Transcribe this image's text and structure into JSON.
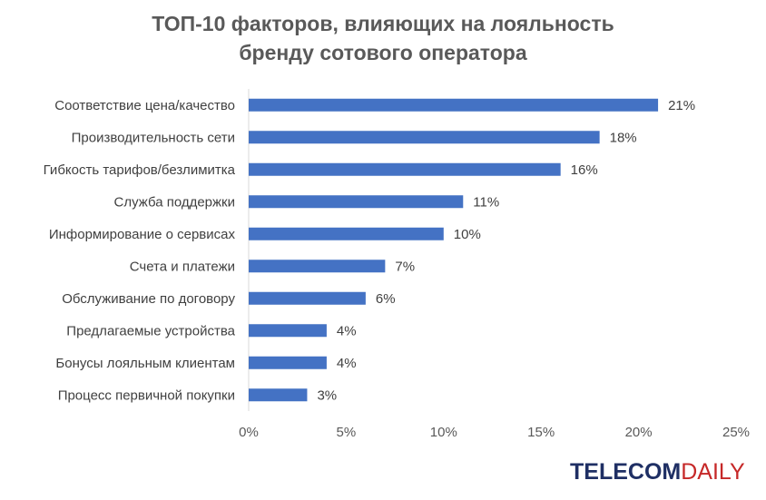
{
  "title_line1": "ТОП-10 факторов, влияющих на лояльность",
  "title_line2": "бренду сотового оператора",
  "brand": {
    "part1": "TELECOM",
    "part2": "DAILY"
  },
  "colors": {
    "bar": "#4472C4",
    "text": "#404040",
    "title": "#595959"
  },
  "chart_data": {
    "type": "bar",
    "orientation": "horizontal",
    "categories": [
      "Соответствие цена/качество",
      "Производительность сети",
      "Гибкость тарифов/безлимитка",
      "Служба поддержки",
      "Информирование о сервисах",
      "Счета и платежи",
      "Обслуживание по договору",
      "Предлагаемые устройства",
      "Бонусы лояльным клиентам ",
      "Процесс первичной покупки"
    ],
    "values": [
      21,
      18,
      16,
      11,
      10,
      7,
      6,
      4,
      4,
      3
    ],
    "value_labels": [
      "21%",
      "18%",
      "16%",
      "11%",
      "10%",
      "7%",
      "6%",
      "4%",
      "4%",
      "3%"
    ],
    "xlim": [
      0,
      25
    ],
    "x_ticks": [
      0,
      5,
      10,
      15,
      20,
      25
    ],
    "x_tick_labels": [
      "0%",
      "5%",
      "10%",
      "15%",
      "20%",
      "25%"
    ],
    "grid": false,
    "legend": "none"
  }
}
